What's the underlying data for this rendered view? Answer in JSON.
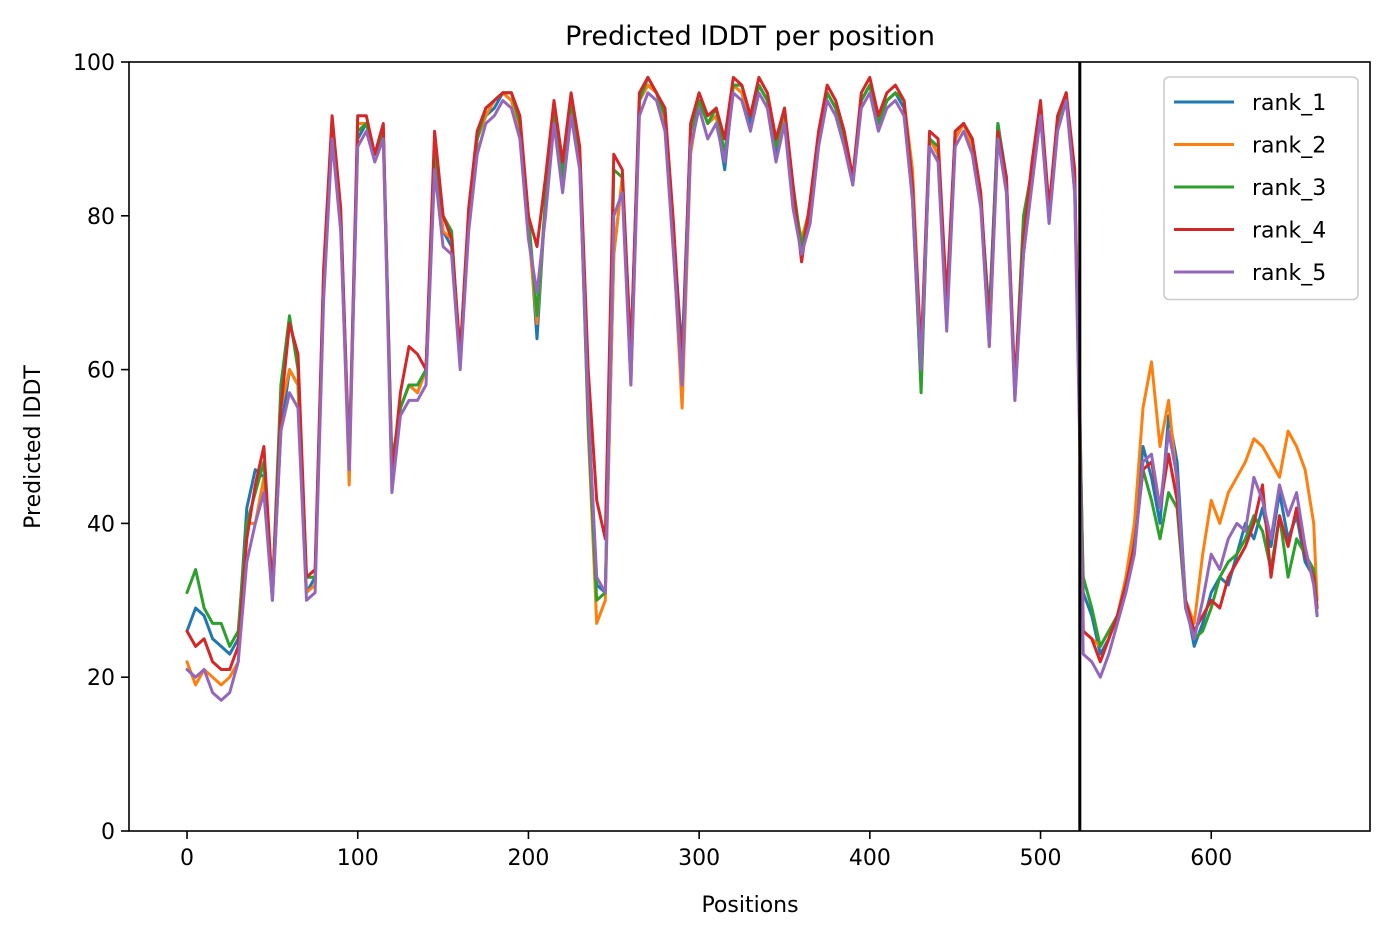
{
  "chart_data": {
    "type": "line",
    "title": "Predicted lDDT per position",
    "xlabel": "Positions",
    "ylabel": "Predicted lDDT",
    "xlim": [
      -34,
      693
    ],
    "ylim": [
      0,
      100
    ],
    "xticks": [
      0,
      100,
      200,
      300,
      400,
      500,
      600
    ],
    "yticks": [
      0,
      20,
      40,
      60,
      80,
      100
    ],
    "grid": false,
    "legend_position": "top-right",
    "chain_break": 523,
    "x": [
      0,
      5,
      10,
      15,
      20,
      25,
      30,
      35,
      40,
      45,
      50,
      55,
      60,
      65,
      70,
      75,
      80,
      85,
      90,
      95,
      100,
      105,
      110,
      115,
      120,
      125,
      130,
      135,
      140,
      145,
      150,
      155,
      160,
      165,
      170,
      175,
      180,
      185,
      190,
      195,
      200,
      205,
      210,
      215,
      220,
      225,
      230,
      235,
      240,
      245,
      250,
      255,
      260,
      265,
      270,
      275,
      280,
      285,
      290,
      295,
      300,
      305,
      310,
      315,
      320,
      325,
      330,
      335,
      340,
      345,
      350,
      355,
      360,
      365,
      370,
      375,
      380,
      385,
      390,
      395,
      400,
      405,
      410,
      415,
      420,
      425,
      430,
      435,
      440,
      445,
      450,
      455,
      460,
      465,
      470,
      475,
      480,
      485,
      490,
      495,
      500,
      505,
      510,
      515,
      520,
      523,
      525,
      530,
      535,
      540,
      545,
      550,
      555,
      560,
      565,
      570,
      575,
      580,
      585,
      590,
      595,
      600,
      605,
      610,
      615,
      620,
      625,
      630,
      635,
      640,
      645,
      650,
      655,
      660,
      662
    ],
    "series": [
      {
        "name": "rank_1",
        "color": "#1f77b4",
        "values": [
          26,
          29,
          28,
          25,
          24,
          23,
          25,
          42,
          47,
          46,
          30,
          52,
          60,
          58,
          31,
          33,
          70,
          91,
          80,
          47,
          90,
          92,
          88,
          91,
          46,
          55,
          58,
          57,
          60,
          88,
          78,
          76,
          62,
          80,
          90,
          93,
          94,
          96,
          95,
          92,
          80,
          64,
          82,
          93,
          85,
          95,
          88,
          55,
          32,
          31,
          75,
          85,
          62,
          95,
          97,
          96,
          93,
          78,
          62,
          91,
          95,
          92,
          93,
          86,
          97,
          96,
          92,
          97,
          95,
          88,
          93,
          82,
          75,
          80,
          90,
          96,
          94,
          90,
          85,
          95,
          97,
          92,
          95,
          96,
          94,
          82,
          58,
          90,
          88,
          66,
          90,
          92,
          89,
          82,
          67,
          92,
          85,
          57,
          75,
          85,
          93,
          80,
          92,
          96,
          83,
          55,
          31,
          28,
          23,
          25,
          28,
          32,
          38,
          50,
          46,
          40,
          54,
          48,
          30,
          24,
          27,
          31,
          33,
          32,
          36,
          40,
          38,
          42,
          37,
          44,
          38,
          41,
          35,
          33,
          28
        ]
      },
      {
        "name": "rank_2",
        "color": "#ff7f0e",
        "values": [
          22,
          19,
          21,
          20,
          19,
          20,
          22,
          40,
          40,
          46,
          31,
          55,
          60,
          58,
          31,
          32,
          71,
          92,
          79,
          45,
          92,
          92,
          88,
          90,
          47,
          55,
          58,
          57,
          60,
          86,
          78,
          77,
          62,
          80,
          90,
          93,
          95,
          96,
          95,
          91,
          78,
          66,
          82,
          94,
          86,
          94,
          88,
          52,
          27,
          30,
          75,
          85,
          58,
          95,
          97,
          96,
          92,
          76,
          55,
          88,
          95,
          92,
          93,
          88,
          97,
          96,
          93,
          97,
          95,
          89,
          93,
          82,
          77,
          81,
          90,
          96,
          94,
          90,
          85,
          95,
          97,
          92,
          95,
          96,
          95,
          86,
          62,
          90,
          88,
          67,
          90,
          92,
          89,
          82,
          63,
          91,
          84,
          56,
          77,
          86,
          94,
          80,
          92,
          95,
          84,
          55,
          26,
          25,
          24,
          26,
          28,
          33,
          40,
          55,
          61,
          50,
          56,
          45,
          30,
          27,
          36,
          43,
          40,
          44,
          46,
          48,
          51,
          50,
          48,
          46,
          52,
          50,
          47,
          40,
          30
        ]
      },
      {
        "name": "rank_3",
        "color": "#2ca02c",
        "values": [
          31,
          34,
          29,
          27,
          27,
          24,
          26,
          40,
          44,
          48,
          31,
          58,
          67,
          60,
          33,
          33,
          72,
          92,
          80,
          48,
          91,
          92,
          88,
          91,
          48,
          55,
          58,
          58,
          60,
          88,
          80,
          78,
          61,
          79,
          90,
          94,
          95,
          96,
          96,
          92,
          80,
          67,
          82,
          94,
          85,
          95,
          87,
          53,
          30,
          31,
          86,
          85,
          61,
          95,
          98,
          96,
          93,
          77,
          60,
          91,
          95,
          92,
          94,
          88,
          97,
          97,
          93,
          97,
          95,
          89,
          94,
          84,
          76,
          81,
          90,
          96,
          94,
          90,
          84,
          95,
          97,
          92,
          95,
          96,
          95,
          84,
          57,
          90,
          89,
          67,
          91,
          92,
          90,
          82,
          66,
          92,
          84,
          57,
          80,
          86,
          94,
          81,
          92,
          96,
          85,
          52,
          33,
          29,
          24,
          26,
          28,
          32,
          37,
          47,
          43,
          38,
          44,
          42,
          29,
          25,
          26,
          29,
          33,
          35,
          36,
          38,
          41,
          39,
          34,
          41,
          33,
          38,
          36,
          34,
          29
        ]
      },
      {
        "name": "rank_4",
        "color": "#d62728",
        "values": [
          26,
          24,
          25,
          22,
          21,
          21,
          24,
          38,
          45,
          50,
          31,
          55,
          66,
          62,
          33,
          34,
          73,
          93,
          81,
          48,
          93,
          93,
          88,
          92,
          46,
          57,
          63,
          62,
          60,
          91,
          80,
          77,
          62,
          81,
          91,
          94,
          95,
          96,
          96,
          93,
          80,
          76,
          85,
          95,
          87,
          96,
          89,
          60,
          43,
          38,
          88,
          86,
          62,
          96,
          98,
          96,
          94,
          79,
          60,
          92,
          96,
          93,
          94,
          90,
          98,
          97,
          93,
          98,
          96,
          90,
          94,
          84,
          74,
          82,
          91,
          97,
          95,
          91,
          85,
          96,
          98,
          93,
          96,
          97,
          95,
          84,
          62,
          91,
          90,
          69,
          91,
          92,
          90,
          83,
          65,
          91,
          85,
          58,
          77,
          87,
          95,
          81,
          93,
          96,
          86,
          52,
          26,
          25,
          22,
          25,
          28,
          32,
          37,
          47,
          48,
          42,
          49,
          43,
          30,
          26,
          28,
          30,
          29,
          33,
          35,
          37,
          40,
          45,
          33,
          41,
          37,
          42,
          36,
          33,
          29
        ]
      },
      {
        "name": "rank_5",
        "color": "#9467bd",
        "values": [
          21,
          20,
          21,
          18,
          17,
          18,
          22,
          35,
          40,
          44,
          30,
          52,
          57,
          55,
          30,
          31,
          69,
          90,
          78,
          47,
          89,
          91,
          87,
          90,
          44,
          54,
          56,
          56,
          58,
          86,
          76,
          75,
          60,
          78,
          88,
          92,
          93,
          95,
          94,
          90,
          77,
          70,
          80,
          92,
          83,
          93,
          86,
          55,
          33,
          31,
          80,
          83,
          58,
          93,
          96,
          95,
          91,
          75,
          58,
          89,
          94,
          90,
          92,
          87,
          96,
          95,
          91,
          96,
          94,
          87,
          92,
          81,
          75,
          79,
          89,
          95,
          93,
          89,
          84,
          94,
          96,
          91,
          94,
          95,
          93,
          82,
          60,
          89,
          87,
          65,
          89,
          91,
          88,
          81,
          63,
          90,
          83,
          56,
          75,
          84,
          93,
          79,
          91,
          95,
          83,
          50,
          23,
          22,
          20,
          23,
          27,
          31,
          36,
          48,
          49,
          42,
          52,
          46,
          29,
          25,
          30,
          36,
          34,
          38,
          40,
          39,
          46,
          43,
          38,
          45,
          41,
          44,
          37,
          32,
          28
        ]
      }
    ]
  }
}
